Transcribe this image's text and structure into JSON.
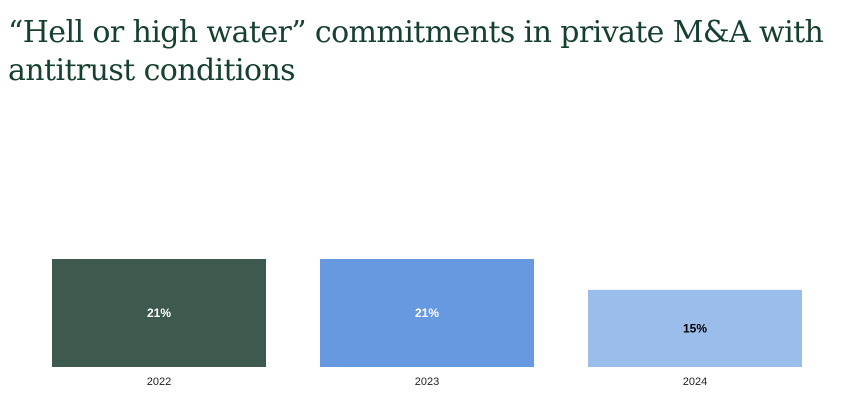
{
  "chart_data": {
    "type": "bar",
    "title": "“Hell or high water” commitments in private M&A with antitrust conditions",
    "categories": [
      "2022",
      "2023",
      "2024"
    ],
    "values": [
      21,
      21,
      15
    ],
    "data_labels": [
      "21%",
      "21%",
      "15%"
    ],
    "bar_colors": [
      "#3e5a4f",
      "#6699e0",
      "#9bbdec"
    ],
    "label_colors": [
      "#ffffff",
      "#ffffff",
      "#000000"
    ],
    "xlabel": "",
    "ylabel": "",
    "ylim": [
      0,
      21
    ],
    "grid": false,
    "legend": "none"
  }
}
